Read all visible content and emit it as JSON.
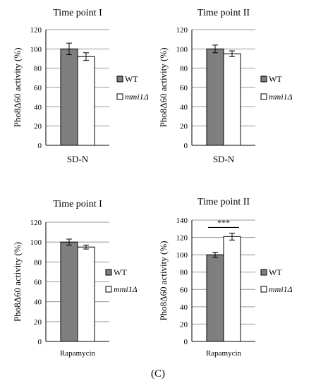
{
  "figure_label": "(C)",
  "colors": {
    "wt": "#7f7f7f",
    "mmi1": "#ffffff",
    "grid": "#9a9a9a",
    "axis": "#000000"
  },
  "chart_data": [
    {
      "type": "bar",
      "title": "Time point I",
      "xlabel": "SD-N",
      "ylabel": "Pho8Δ60 activity (%)",
      "ylim": [
        0,
        120
      ],
      "yticks": [
        0,
        20,
        40,
        60,
        80,
        100,
        120
      ],
      "grid": true,
      "legend": "right",
      "series": [
        {
          "name": "WT",
          "values": [
            100
          ],
          "errors": [
            6
          ]
        },
        {
          "name": "mmi1Δ",
          "values": [
            92
          ],
          "errors": [
            4
          ]
        }
      ]
    },
    {
      "type": "bar",
      "title": "Time point II",
      "xlabel": "SD-N",
      "ylabel": "Pho8Δ60 activity (%)",
      "ylim": [
        0,
        120
      ],
      "yticks": [
        0,
        20,
        40,
        60,
        80,
        100,
        120
      ],
      "grid": true,
      "legend": "right",
      "series": [
        {
          "name": "WT",
          "values": [
            100
          ],
          "errors": [
            4
          ]
        },
        {
          "name": "mmi1Δ",
          "values": [
            95
          ],
          "errors": [
            3
          ]
        }
      ]
    },
    {
      "type": "bar",
      "title": "Time point I",
      "xlabel": "Rapamycin",
      "ylabel": "Pho8Δ60 activity (%)",
      "ylim": [
        0,
        120
      ],
      "yticks": [
        0,
        20,
        40,
        60,
        80,
        100,
        120
      ],
      "grid": true,
      "legend": "right",
      "series": [
        {
          "name": "WT",
          "values": [
            100
          ],
          "errors": [
            3
          ]
        },
        {
          "name": "mmi1Δ",
          "values": [
            95
          ],
          "errors": [
            2
          ]
        }
      ]
    },
    {
      "type": "bar",
      "title": "Time point II",
      "xlabel": "Rapamycin",
      "ylabel": "Pho8Δ60 activity (%)",
      "ylim": [
        0,
        140
      ],
      "yticks": [
        0,
        20,
        40,
        60,
        80,
        100,
        120,
        140
      ],
      "grid": true,
      "legend": "right",
      "significance": "***",
      "series": [
        {
          "name": "WT",
          "values": [
            100
          ],
          "errors": [
            3
          ]
        },
        {
          "name": "mmi1Δ",
          "values": [
            121
          ],
          "errors": [
            4
          ]
        }
      ]
    }
  ]
}
